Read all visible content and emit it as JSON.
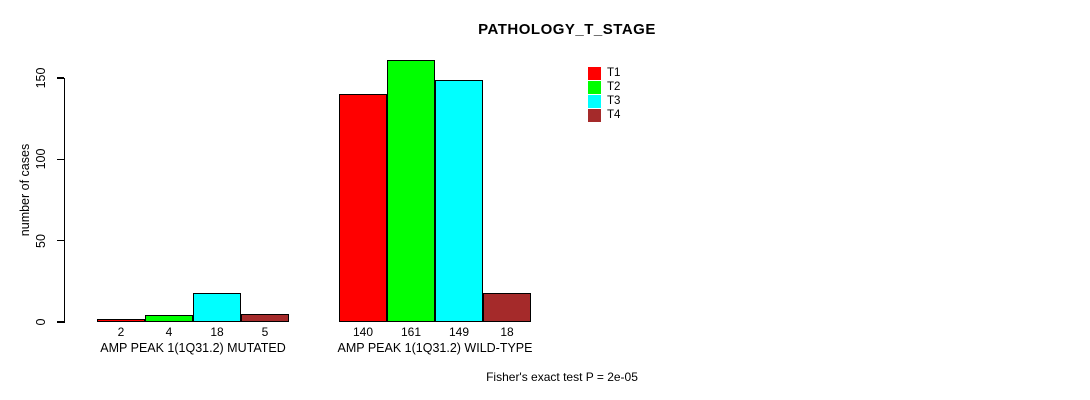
{
  "chart_data": {
    "type": "bar",
    "title": "PATHOLOGY_T_STAGE",
    "xlabel": "",
    "ylabel": "number of cases",
    "ylim": [
      0,
      150
    ],
    "yticks": [
      0,
      50,
      100,
      150
    ],
    "categories": [
      "AMP PEAK 1(1Q31.2) MUTATED",
      "AMP PEAK 1(1Q31.2) WILD-TYPE"
    ],
    "series": [
      {
        "name": "T1",
        "color": "#ff0000",
        "values": [
          2,
          140
        ]
      },
      {
        "name": "T2",
        "color": "#00ff00",
        "values": [
          4,
          161
        ]
      },
      {
        "name": "T3",
        "color": "#00ffff",
        "values": [
          18,
          149
        ]
      },
      {
        "name": "T4",
        "color": "#a52a2a",
        "values": [
          5,
          18
        ]
      }
    ],
    "legend_position": "top-right",
    "grid": false,
    "value_labels_shown": true,
    "annotation": "Fisher's exact test P = 2e-05"
  }
}
